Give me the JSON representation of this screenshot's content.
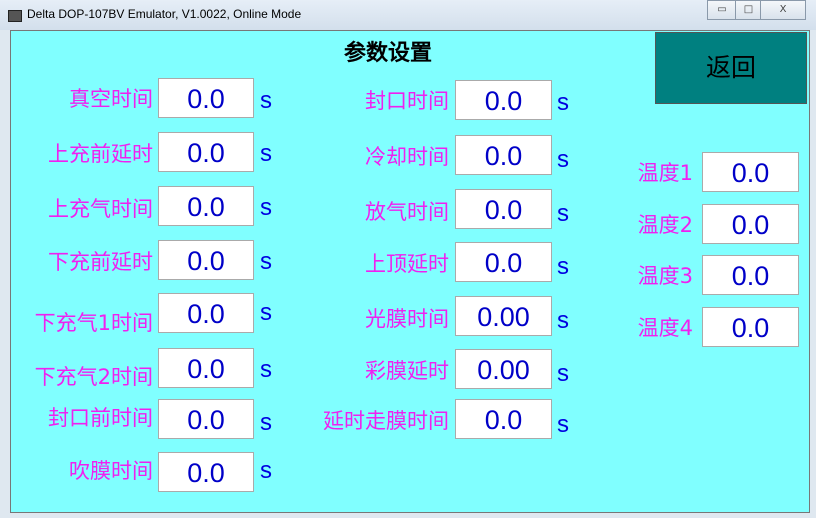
{
  "window": {
    "title": "Delta DOP-107BV Emulator, V1.0022, Online Mode",
    "minimize": "▭",
    "maximize": "□",
    "close": "X"
  },
  "page_title": "参数设置",
  "return_label": "返回",
  "unit": "s",
  "left": [
    {
      "label": "真空时间",
      "value": "0.0"
    },
    {
      "label": "上充前延时",
      "value": "0.0"
    },
    {
      "label": "上充气时间",
      "value": "0.0"
    },
    {
      "label": "下充前延时",
      "value": "0.0"
    },
    {
      "label": "下充气1时间",
      "value": "0.0"
    },
    {
      "label": "下充气2时间",
      "value": "0.0"
    },
    {
      "label": "封口前时间",
      "value": "0.0"
    },
    {
      "label": "吹膜时间",
      "value": "0.0"
    }
  ],
  "middle": [
    {
      "label": "封口时间",
      "value": "0.0"
    },
    {
      "label": "冷却时间",
      "value": "0.0"
    },
    {
      "label": "放气时间",
      "value": "0.0"
    },
    {
      "label": "上顶延时",
      "value": "0.0"
    },
    {
      "label": "光膜时间",
      "value": "0.00"
    },
    {
      "label": "彩膜延时",
      "value": "0.00"
    },
    {
      "label": "延时走膜时间",
      "value": "0.0"
    }
  ],
  "temps": [
    {
      "label": "温度1",
      "value": "0.0"
    },
    {
      "label": "温度2",
      "value": "0.0"
    },
    {
      "label": "温度3",
      "value": "0.0"
    },
    {
      "label": "温度4",
      "value": "0.0"
    }
  ],
  "colors": {
    "background": "#80FFFF",
    "label": "#F020F0",
    "value": "#0000C8",
    "return_button": "#008080"
  }
}
